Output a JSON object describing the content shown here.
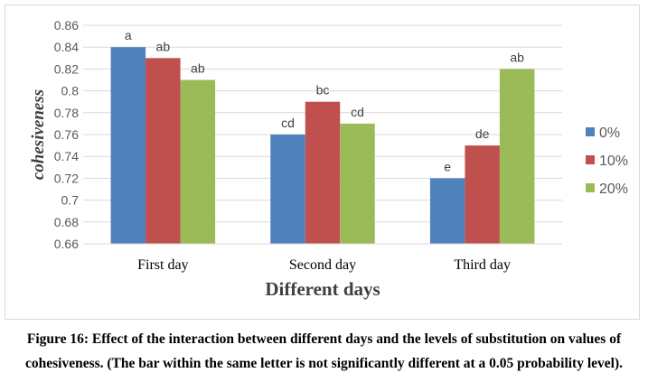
{
  "chart_data": {
    "type": "bar",
    "ylabel": "cohesiveness",
    "xlabel": "Different days",
    "ylim": [
      0.66,
      0.86
    ],
    "ytick_step": 0.02,
    "yticks": [
      "0.66",
      "0.68",
      "0.7",
      "0.72",
      "0.74",
      "0.76",
      "0.78",
      "0.8",
      "0.82",
      "0.84",
      "0.86"
    ],
    "categories": [
      "First day",
      "Second day",
      "Third day"
    ],
    "series": [
      {
        "name": "0%",
        "color": "#4f81bd",
        "values": [
          0.84,
          0.76,
          0.72
        ],
        "labels": [
          "a",
          "cd",
          "e"
        ]
      },
      {
        "name": "10%",
        "color": "#c0504d",
        "values": [
          0.83,
          0.79,
          0.75
        ],
        "labels": [
          "ab",
          "bc",
          "de"
        ]
      },
      {
        "name": "20%",
        "color": "#9bbb59",
        "values": [
          0.81,
          0.77,
          0.82
        ],
        "labels": [
          "ab",
          "cd",
          "ab"
        ]
      }
    ],
    "grid": true,
    "legend_position": "right"
  },
  "caption": {
    "line1": "Figure 16: Effect of the interaction between different days and the levels of substitution on values of",
    "line2": "cohesiveness. (The bar within the same letter is not significantly different at a 0.05 probability level)."
  }
}
